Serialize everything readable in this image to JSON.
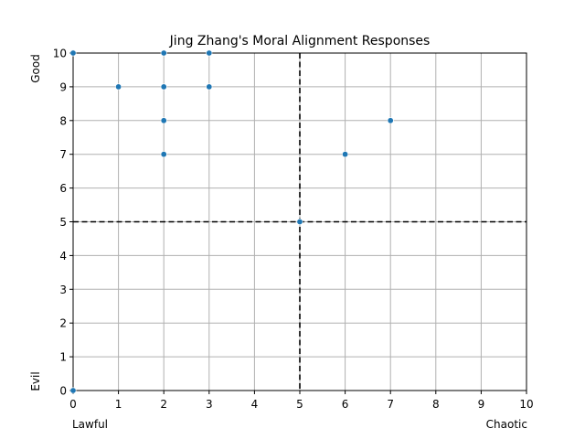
{
  "chart_data": {
    "type": "scatter",
    "title": "Jing Zhang's Moral Alignment Responses",
    "xlabel": "",
    "ylabel": "",
    "xlim": [
      0,
      10
    ],
    "ylim": [
      0,
      10
    ],
    "xticks": [
      0,
      1,
      2,
      3,
      4,
      5,
      6,
      7,
      8,
      9,
      10
    ],
    "yticks": [
      0,
      1,
      2,
      3,
      4,
      5,
      6,
      7,
      8,
      9,
      10
    ],
    "x_low_label": "Lawful",
    "x_high_label": "Chaotic",
    "y_low_label": "Evil",
    "y_high_label": "Good",
    "grid": true,
    "reference_lines": {
      "x": 5,
      "y": 5
    },
    "marker_color": "#1f77b4",
    "points": [
      {
        "x": 0,
        "y": 10
      },
      {
        "x": 0,
        "y": 0
      },
      {
        "x": 1,
        "y": 9
      },
      {
        "x": 2,
        "y": 10
      },
      {
        "x": 2,
        "y": 9
      },
      {
        "x": 2,
        "y": 8
      },
      {
        "x": 2,
        "y": 7
      },
      {
        "x": 3,
        "y": 10
      },
      {
        "x": 3,
        "y": 9
      },
      {
        "x": 5,
        "y": 5
      },
      {
        "x": 6,
        "y": 7
      },
      {
        "x": 7,
        "y": 8
      }
    ]
  }
}
